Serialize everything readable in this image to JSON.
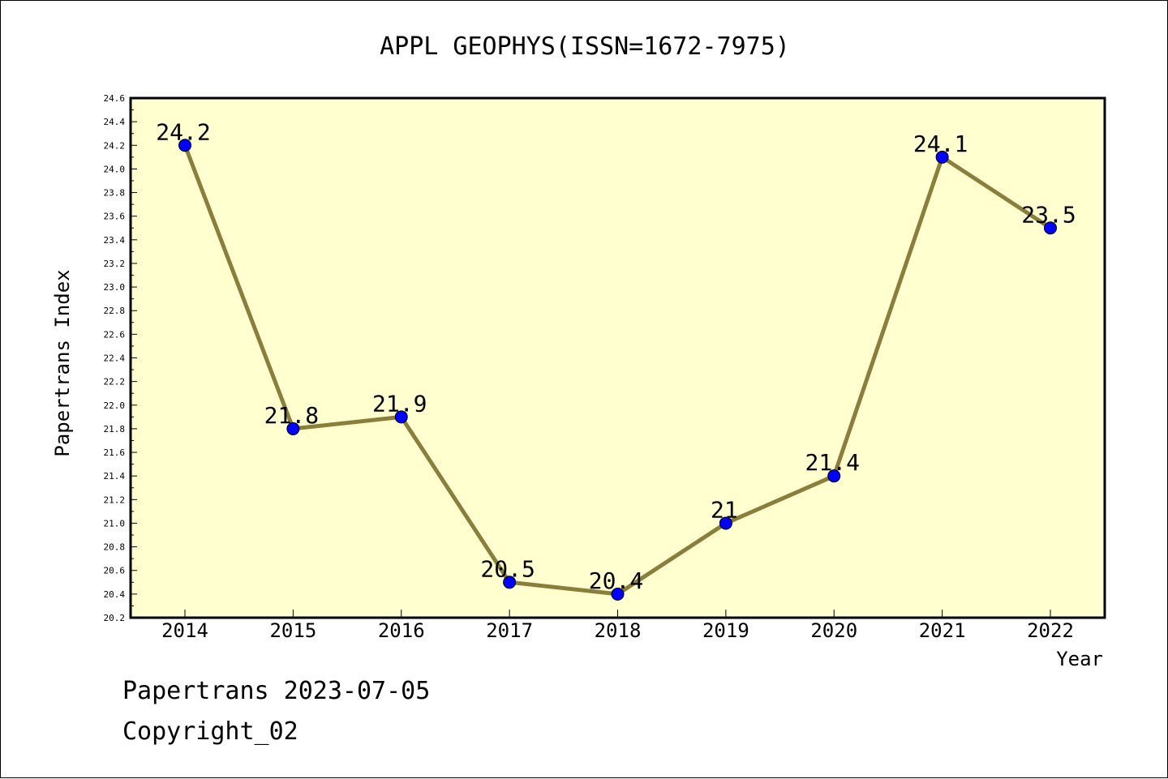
{
  "chart_data": {
    "type": "line",
    "title": "APPL GEOPHYS(ISSN=1672-7975)",
    "xlabel": "Year",
    "ylabel": "Papertrans Index",
    "categories": [
      "2014",
      "2015",
      "2016",
      "2017",
      "2018",
      "2019",
      "2020",
      "2021",
      "2022"
    ],
    "values": [
      24.2,
      21.8,
      21.9,
      20.5,
      20.4,
      21,
      21.4,
      24.1,
      23.5
    ],
    "data_labels": [
      "24.2",
      "21.8",
      "21.9",
      "20.5",
      "20.4",
      "21",
      "21.4",
      "24.1",
      "23.5"
    ],
    "ylim": [
      20.2,
      24.6
    ],
    "yticks": [
      "20.2",
      "20.4",
      "20.6",
      "20.8",
      "21.0",
      "21.2",
      "21.4",
      "21.6",
      "21.8",
      "22.0",
      "22.2",
      "22.4",
      "22.6",
      "22.8",
      "23.0",
      "23.2",
      "23.4",
      "23.6",
      "23.8",
      "24.0",
      "24.2",
      "24.4",
      "24.6"
    ],
    "grid": false,
    "colors": {
      "plot_background": "#ffffd0",
      "line": "#8b7d3a",
      "marker": "#0000ff"
    }
  },
  "footer": {
    "line1": "Papertrans 2023-07-05",
    "line2": "Copyright_02"
  }
}
